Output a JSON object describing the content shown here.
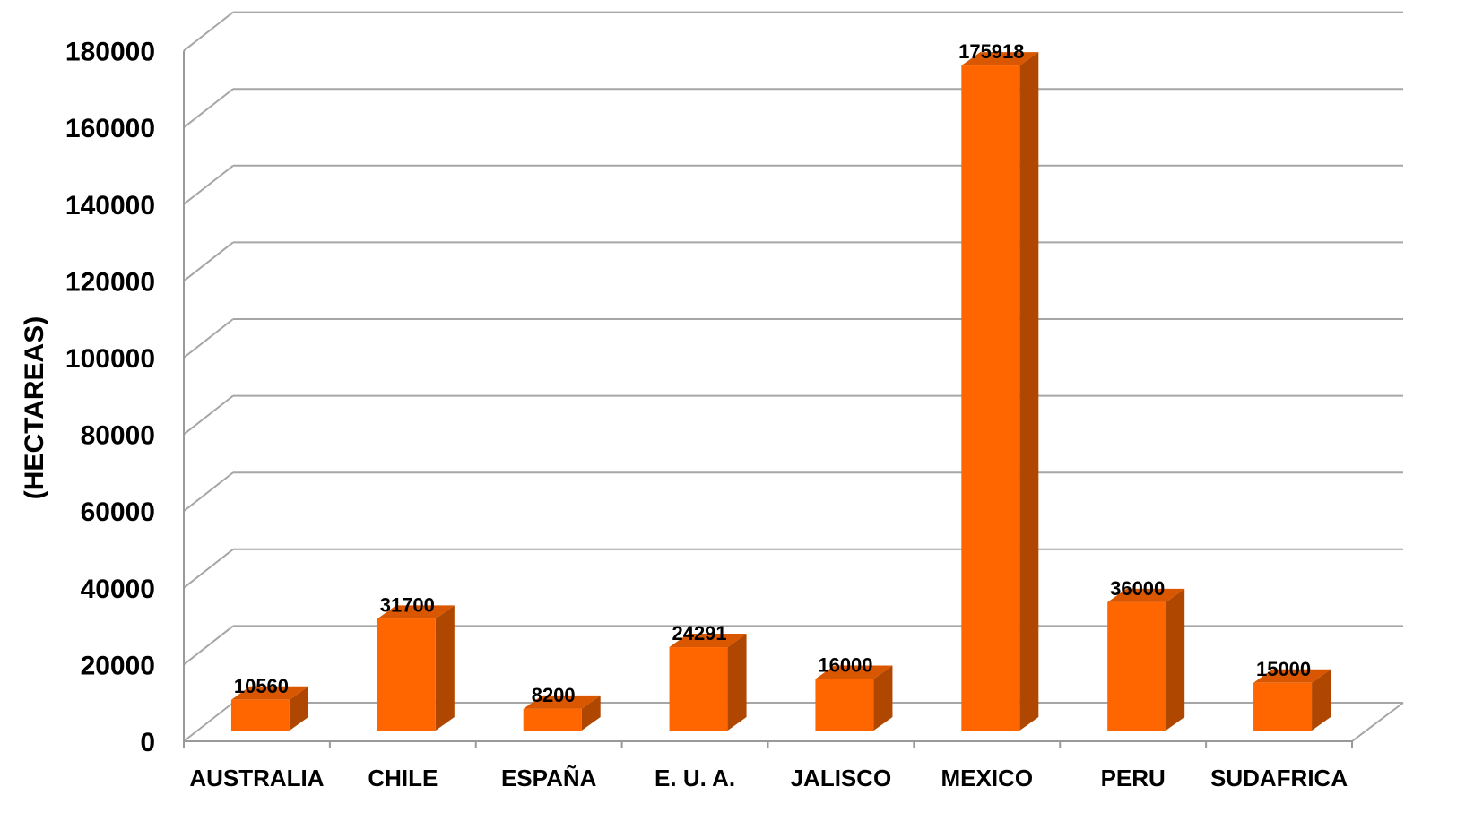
{
  "chart_data": {
    "type": "bar",
    "style": "3d-column",
    "ylabel": "(HECTAREAS)",
    "xlabel": "",
    "title": "",
    "categories": [
      "AUSTRALIA",
      "CHILE",
      "ESPAÑA",
      "E. U. A.",
      "JALISCO",
      "MEXICO",
      "PERU",
      "SUDAFRICA"
    ],
    "values": [
      10560,
      31700,
      8200,
      24291,
      16000,
      175918,
      36000,
      15000
    ],
    "data_labels": [
      "10560",
      "31700",
      "8200",
      "24291",
      "16000",
      "175918",
      "36000",
      "15000"
    ],
    "ylim": [
      0,
      180000
    ],
    "yticks": [
      "0",
      "20000",
      "40000",
      "60000",
      "80000",
      "100000",
      "120000",
      "140000",
      "160000",
      "180000"
    ],
    "grid": true,
    "legend": "none",
    "colors": {
      "bar_front": "#ff6600",
      "bar_side": "#b04700",
      "bar_top": "#d95700",
      "grid": "#a6a6a6"
    }
  }
}
